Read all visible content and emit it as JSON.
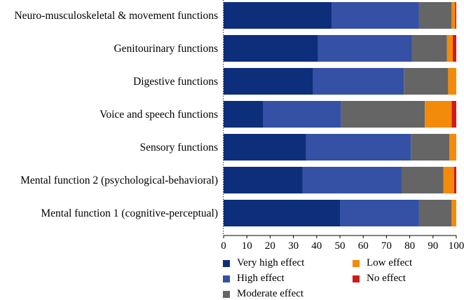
{
  "chart_data": {
    "type": "bar",
    "orientation": "horizontal",
    "stacked": true,
    "categories": [
      "Neuro-musculoskeletal & movement functions",
      "Genitourinary functions",
      "Digestive functions",
      "Voice and speech functions",
      "Sensory functions",
      "Mental function 2 (psychological-behavioral)",
      "Mental function 1 (cognitive-perceptual)"
    ],
    "series": [
      {
        "name": "Very high effect",
        "color": "#0d2e7a",
        "values": [
          46.5,
          40.5,
          38.5,
          17,
          35.5,
          34,
          50
        ]
      },
      {
        "name": "High effect",
        "color": "#3451a6",
        "values": [
          37.5,
          40.5,
          39,
          33.5,
          45,
          42.5,
          34
        ]
      },
      {
        "name": "Moderate effect",
        "color": "#656565",
        "values": [
          14,
          15,
          19,
          36,
          16.5,
          18,
          14
        ]
      },
      {
        "name": "Low effect",
        "color": "#f48a0a",
        "values": [
          1.5,
          2.5,
          3.5,
          11.5,
          3,
          4.5,
          2
        ]
      },
      {
        "name": "No effect",
        "color": "#d11b1b",
        "values": [
          0.5,
          1.5,
          0,
          2,
          0,
          1,
          0
        ]
      }
    ],
    "xlim": [
      0,
      100
    ],
    "xticks": [
      "0",
      "10",
      "20",
      "30",
      "40",
      "50",
      "60",
      "70",
      "80",
      "90",
      "100"
    ],
    "title": "",
    "xlabel": "",
    "ylabel": "",
    "legend": [
      {
        "label": "Very high effect",
        "color": "#0d2e7a"
      },
      {
        "label": "High effect",
        "color": "#3451a6"
      },
      {
        "label": "Moderate effect",
        "color": "#656565"
      },
      {
        "label": "Low effect",
        "color": "#f48a0a"
      },
      {
        "label": "No effect",
        "color": "#d11b1b"
      }
    ],
    "legend_position": "bottom"
  }
}
